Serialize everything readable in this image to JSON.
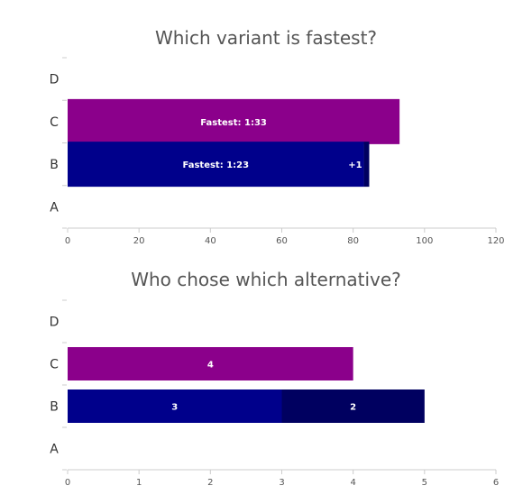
{
  "chart_data": [
    {
      "type": "bar",
      "orientation": "horizontal",
      "stacked": true,
      "title": "Which variant is fastest?",
      "categories": [
        "D",
        "C",
        "B",
        "A"
      ],
      "xlim": [
        0,
        120
      ],
      "xticks": [
        0,
        20,
        40,
        60,
        80,
        100,
        120
      ],
      "grid": false,
      "series": [
        {
          "color": "#8b008b",
          "values": [
            0,
            93,
            0,
            0
          ],
          "labels": [
            "",
            "Fastest: 1:33",
            "",
            ""
          ]
        },
        {
          "color": "#00008b",
          "values": [
            0,
            0,
            83,
            0
          ],
          "labels": [
            "",
            "",
            "Fastest: 1:23",
            ""
          ]
        },
        {
          "color": "#000060",
          "values": [
            0,
            0,
            1.5,
            0
          ],
          "labels": [
            "",
            "",
            "+1",
            ""
          ]
        }
      ]
    },
    {
      "type": "bar",
      "orientation": "horizontal",
      "stacked": true,
      "title": "Who chose which alternative?",
      "categories": [
        "D",
        "C",
        "B",
        "A"
      ],
      "xlim": [
        0,
        6
      ],
      "xticks": [
        0,
        1,
        2,
        3,
        4,
        5,
        6
      ],
      "grid": false,
      "series": [
        {
          "color": "#8b008b",
          "values": [
            0,
            4,
            0,
            0
          ],
          "labels": [
            "",
            "4",
            "",
            ""
          ]
        },
        {
          "color": "#00008b",
          "values": [
            0,
            0,
            3,
            0
          ],
          "labels": [
            "",
            "",
            "3",
            ""
          ]
        },
        {
          "color": "#000060",
          "values": [
            0,
            0,
            2,
            0
          ],
          "labels": [
            "",
            "",
            "2",
            ""
          ]
        }
      ]
    }
  ]
}
